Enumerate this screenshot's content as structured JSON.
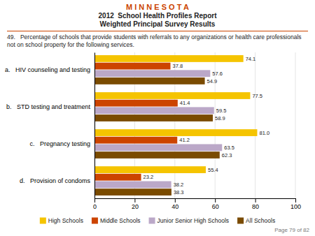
{
  "chart_data": {
    "type": "bar",
    "orientation": "horizontal",
    "title": "M I N N E S O T A",
    "subtitle": [
      "2012  School Health Profiles Report",
      "Weighted Principal Survey Results"
    ],
    "annotations": [
      "49.   Percentage of schools that provide students with referrals to any organizations or health care professionals not on school property for the following services.",
      "Page 79 of 82"
    ],
    "categories": [
      "a.   HIV counseling and testing",
      "b.   STD testing and treatment",
      "c.   Pregnancy testing",
      "d.   Provision of condoms"
    ],
    "series": [
      {
        "name": "High Schools",
        "color": "#F5C400",
        "values": [
          74.1,
          77.5,
          81.0,
          55.4
        ],
        "value_labels": [
          "74.1",
          "77.5",
          "81.0",
          "55.4"
        ]
      },
      {
        "name": "Middle Schools",
        "color": "#CC4400",
        "values": [
          37.8,
          41.4,
          41.2,
          23.2
        ],
        "value_labels": [
          "37.8",
          "41.4",
          "41.2",
          "23.2"
        ]
      },
      {
        "name": "Junior Senior High Schools",
        "color": "#BBA8C8",
        "values": [
          57.6,
          59.5,
          63.5,
          38.2
        ],
        "value_labels": [
          "57.6",
          "59.5",
          "63.5",
          "38.2"
        ]
      },
      {
        "name": "All Schools",
        "color": "#7A4B00",
        "values": [
          54.9,
          58.9,
          62.3,
          38.3
        ],
        "value_labels": [
          "54.9",
          "58.9",
          "62.3",
          "38.3"
        ]
      }
    ],
    "xlim": [
      0,
      100
    ],
    "xticks": [
      0,
      20,
      40,
      60,
      80,
      100
    ],
    "grid": true,
    "legend": "bottom",
    "data_labels": true
  }
}
